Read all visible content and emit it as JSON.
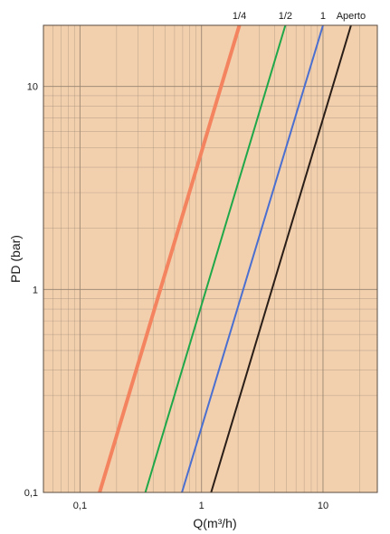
{
  "chart_data": {
    "type": "line",
    "title": "",
    "xlabel": "Q(m³/h)",
    "ylabel": "PD (bar)",
    "x_scale": "log",
    "y_scale": "log",
    "xlim": [
      0.05,
      28
    ],
    "ylim": [
      0.1,
      20
    ],
    "grid": true,
    "legend": "none",
    "x_ticks": [
      {
        "value": 0.1,
        "label": "0,1"
      },
      {
        "value": 1,
        "label": "1"
      },
      {
        "value": 10,
        "label": "10"
      }
    ],
    "y_ticks": [
      {
        "value": 0.1,
        "label": "0,1"
      },
      {
        "value": 1,
        "label": "1"
      },
      {
        "value": 10,
        "label": "10"
      }
    ],
    "series": [
      {
        "name": "1/4",
        "color": "#f4835f",
        "x": [
          0.145,
          2.05
        ],
        "y": [
          0.1,
          20
        ]
      },
      {
        "name": "1/2",
        "color": "#1fa84a",
        "x": [
          0.345,
          4.9
        ],
        "y": [
          0.1,
          20
        ]
      },
      {
        "name": "1",
        "color": "#4a6fd0",
        "x": [
          0.69,
          10
        ],
        "y": [
          0.1,
          20
        ]
      },
      {
        "name": "Aperto",
        "color": "#2a1e18",
        "x": [
          1.2,
          17
        ],
        "y": [
          0.1,
          20
        ]
      }
    ],
    "colors": {
      "plot_background": "#f2d0ae",
      "grid": "#9a8672"
    }
  }
}
